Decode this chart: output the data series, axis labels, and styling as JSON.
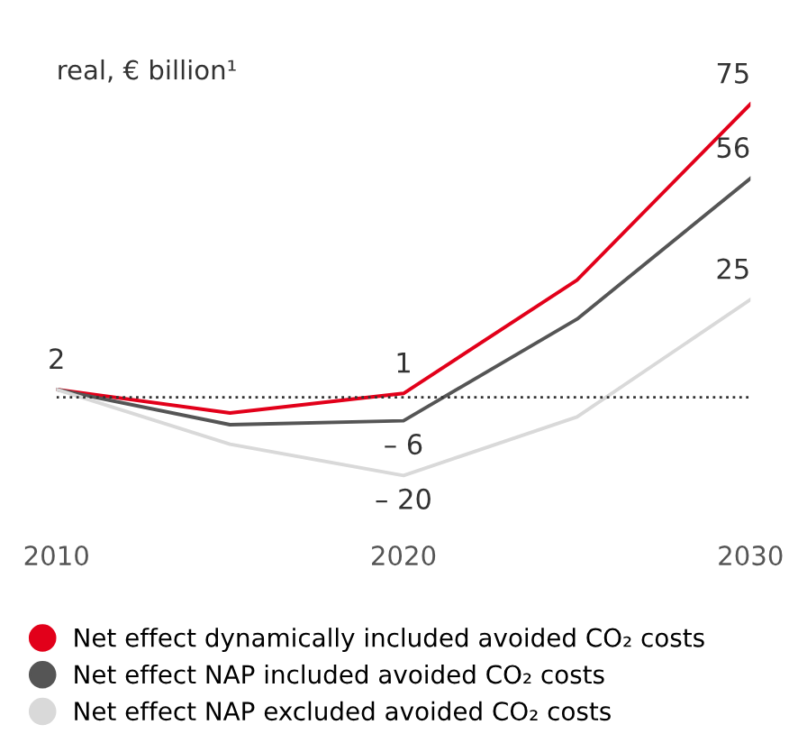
{
  "chart_data": {
    "type": "line",
    "ylabel": "real, € billion¹",
    "x": [
      2010,
      2015,
      2020,
      2025,
      2030
    ],
    "xlim": [
      2010,
      2030
    ],
    "xticks": [
      2010,
      2020,
      2030
    ],
    "tick_labels": "x",
    "grid": false,
    "legend": "bottom",
    "marker": "none",
    "line_style": "solid",
    "ref_lines": [
      {
        "axis": "y",
        "value": 0,
        "color": "#333333",
        "line_style": "dotted"
      }
    ],
    "series": [
      {
        "name": "Net effect dynamically included avoided CO₂ costs",
        "color": "#e2001a",
        "values": [
          2,
          -4,
          1,
          30,
          75
        ],
        "value_labels": [
          "2",
          null,
          "1",
          null,
          "75"
        ]
      },
      {
        "name": "Net effect NAP included avoided CO₂ costs",
        "color": "#555555",
        "values": [
          2,
          -7,
          -6,
          20,
          56
        ],
        "value_labels": [
          null,
          null,
          "– 6",
          null,
          "56"
        ]
      },
      {
        "name": "Net effect NAP excluded avoided CO₂ costs",
        "color": "#d9d9d9",
        "values": [
          2,
          -12,
          -20,
          -5,
          25
        ],
        "value_labels": [
          null,
          null,
          "– 20",
          null,
          "25"
        ]
      }
    ]
  }
}
